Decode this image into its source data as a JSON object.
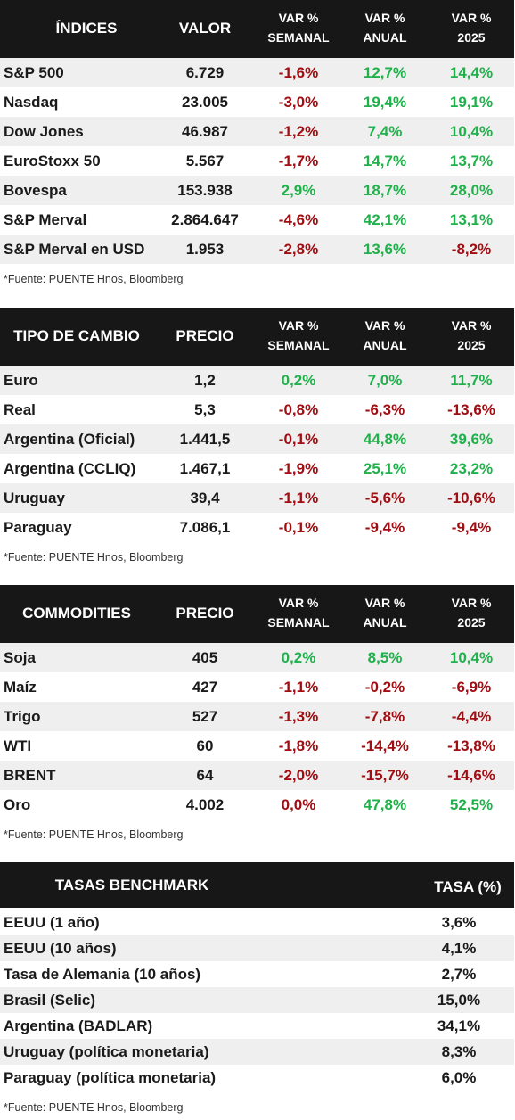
{
  "colors": {
    "header_bg": "#171717",
    "positive": "#1fb14a",
    "negative": "#a00d12",
    "row_alt": "#efefef"
  },
  "indices": {
    "headers": [
      "ÍNDICES",
      "VALOR",
      "VAR %",
      "SEMANAL",
      "VAR %",
      "ANUAL",
      "VAR %",
      "2025"
    ],
    "rows": [
      {
        "name": "S&P 500",
        "value": "6.729",
        "w": "-1,6%",
        "a": "12,7%",
        "y": "14,4%"
      },
      {
        "name": "Nasdaq",
        "value": "23.005",
        "w": "-3,0%",
        "a": "19,4%",
        "y": "19,1%"
      },
      {
        "name": "Dow Jones",
        "value": "46.987",
        "w": "-1,2%",
        "a": "7,4%",
        "y": "10,4%"
      },
      {
        "name": "EuroStoxx 50",
        "value": "5.567",
        "w": "-1,7%",
        "a": "14,7%",
        "y": "13,7%"
      },
      {
        "name": "Bovespa",
        "value": "153.938",
        "w": "2,9%",
        "a": "18,7%",
        "y": "28,0%"
      },
      {
        "name": "S&P Merval",
        "value": "2.864.647",
        "w": "-4,6%",
        "a": "42,1%",
        "y": "13,1%"
      },
      {
        "name": "S&P Merval en USD",
        "value": "1.953",
        "w": "-2,8%",
        "a": "13,6%",
        "y": "-8,2%"
      }
    ],
    "source": "*Fuente: PUENTE Hnos, Bloomberg"
  },
  "fx": {
    "headers": [
      "TIPO DE CAMBIO",
      "PRECIO",
      "VAR %",
      "SEMANAL",
      "VAR %",
      "ANUAL",
      "VAR %",
      "2025"
    ],
    "rows": [
      {
        "name": "Euro",
        "value": "1,2",
        "w": "0,2%",
        "a": "7,0%",
        "y": "11,7%"
      },
      {
        "name": "Real",
        "value": "5,3",
        "w": "-0,8%",
        "a": "-6,3%",
        "y": "-13,6%"
      },
      {
        "name": "Argentina (Oficial)",
        "value": "1.441,5",
        "w": "-0,1%",
        "a": "44,8%",
        "y": "39,6%"
      },
      {
        "name": "Argentina (CCLIQ)",
        "value": "1.467,1",
        "w": "-1,9%",
        "a": "25,1%",
        "y": "23,2%"
      },
      {
        "name": "Uruguay",
        "value": "39,4",
        "w": "-1,1%",
        "a": "-5,6%",
        "y": "-10,6%"
      },
      {
        "name": "Paraguay",
        "value": "7.086,1",
        "w": "-0,1%",
        "a": "-9,4%",
        "y": "-9,4%"
      }
    ],
    "source": "*Fuente: PUENTE Hnos, Bloomberg"
  },
  "commodities": {
    "headers": [
      "COMMODITIES",
      "PRECIO",
      "VAR %",
      "SEMANAL",
      "VAR %",
      "ANUAL",
      "VAR %",
      "2025"
    ],
    "rows": [
      {
        "name": "Soja",
        "value": "405",
        "w": "0,2%",
        "a": "8,5%",
        "y": "10,4%"
      },
      {
        "name": "Maíz",
        "value": "427",
        "w": "-1,1%",
        "a": "-0,2%",
        "y": "-6,9%"
      },
      {
        "name": "Trigo",
        "value": "527",
        "w": "-1,3%",
        "a": "-7,8%",
        "y": "-4,4%"
      },
      {
        "name": "WTI",
        "value": "60",
        "w": "-1,8%",
        "a": "-14,4%",
        "y": "-13,8%"
      },
      {
        "name": "BRENT",
        "value": "64",
        "w": "-2,0%",
        "a": "-15,7%",
        "y": "-14,6%"
      },
      {
        "name": "Oro",
        "value": "4.002",
        "w": "0,0%",
        "a": "47,8%",
        "y": "52,5%"
      }
    ],
    "source": "*Fuente: PUENTE Hnos, Bloomberg"
  },
  "rates": {
    "headers": [
      "TASAS BENCHMARK",
      "TASA (%)"
    ],
    "rows": [
      {
        "name": "EEUU (1 año)",
        "rate": "3,6%"
      },
      {
        "name": "EEUU (10 años)",
        "rate": "4,1%"
      },
      {
        "name": "Tasa de Alemania (10 años)",
        "rate": "2,7%"
      },
      {
        "name": "Brasil (Selic)",
        "rate": "15,0%"
      },
      {
        "name": "Argentina (BADLAR)",
        "rate": "34,1%"
      },
      {
        "name": "Uruguay (política monetaria)",
        "rate": "8,3%"
      },
      {
        "name": "Paraguay (política monetaria)",
        "rate": "6,0%"
      }
    ],
    "source": "*Fuente: PUENTE Hnos, Bloomberg"
  }
}
